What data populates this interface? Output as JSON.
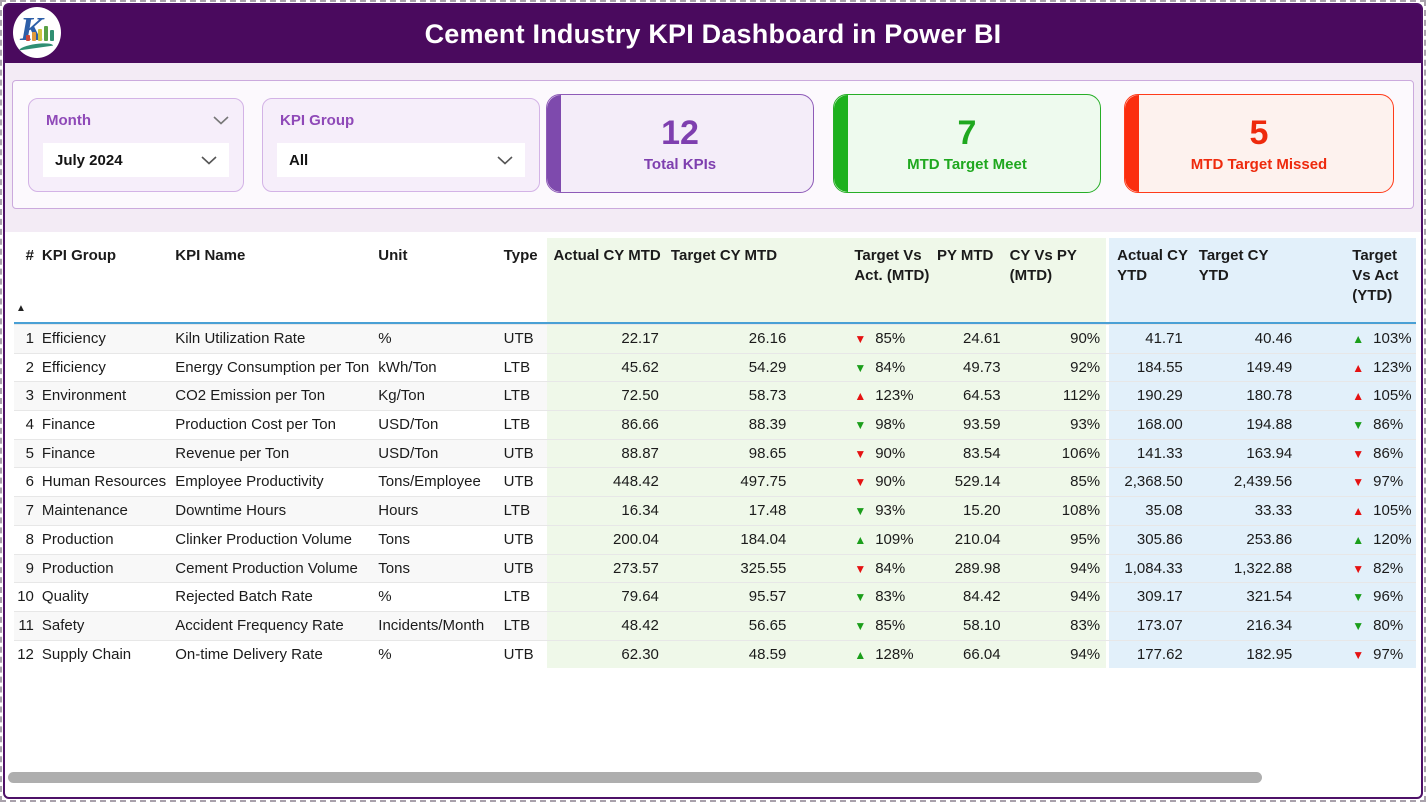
{
  "header": {
    "title": "Cement Industry KPI Dashboard in Power BI"
  },
  "filters": {
    "month": {
      "label": "Month",
      "value": "July 2024"
    },
    "kpi_group": {
      "label": "KPI Group",
      "value": "All"
    }
  },
  "cards": [
    {
      "value": "12",
      "label": "Total KPIs",
      "color": "#7e3faf",
      "bg": "#f4edf9",
      "accent": "#7e4aad"
    },
    {
      "value": "7",
      "label": "MTD Target Meet",
      "color": "#1fa81f",
      "bg": "#eefaee",
      "accent": "#1db11d"
    },
    {
      "value": "5",
      "label": "MTD Target Missed",
      "color": "#ee2a0d",
      "bg": "#fdf2ee",
      "accent": "#fb2e0f"
    }
  ],
  "colors": {
    "header_bar": "#4a0a5e",
    "mtd_section_bg": "#eff8e9",
    "ytd_section_bg": "#e2f0fa",
    "arrow_up_good": "#1b9e1b",
    "arrow_bad": "#e51212",
    "header_underline": "#49a0d5"
  },
  "table": {
    "columns": [
      "#",
      "KPI Group",
      "KPI Name",
      "Unit",
      "Type",
      "Actual CY MTD",
      "Target CY MTD",
      "Target Vs Act. (MTD)",
      "PY MTD",
      "CY Vs PY (MTD)",
      "Actual CY YTD",
      "Target CY YTD",
      "Target Vs Act (YTD)"
    ],
    "sort_indicator": "ascending-on-#",
    "rows": [
      {
        "num": "1",
        "group": "Efficiency",
        "name": "Kiln Utilization Rate",
        "unit": "%",
        "type": "UTB",
        "actual_mtd": "22.17",
        "target_mtd": "26.16",
        "tva_mtd": {
          "dir": "down",
          "color": "red",
          "value": "85%"
        },
        "py_mtd": "24.61",
        "cy_vs_py": "90%",
        "actual_ytd": "41.71",
        "target_ytd": "40.46",
        "tva_ytd": {
          "dir": "up",
          "color": "green",
          "value": "103%"
        }
      },
      {
        "num": "2",
        "group": "Efficiency",
        "name": "Energy Consumption per Ton",
        "unit": "kWh/Ton",
        "type": "LTB",
        "actual_mtd": "45.62",
        "target_mtd": "54.29",
        "tva_mtd": {
          "dir": "down",
          "color": "green",
          "value": "84%"
        },
        "py_mtd": "49.73",
        "cy_vs_py": "92%",
        "actual_ytd": "184.55",
        "target_ytd": "149.49",
        "tva_ytd": {
          "dir": "up",
          "color": "red",
          "value": "123%"
        }
      },
      {
        "num": "3",
        "group": "Environment",
        "name": "CO2 Emission per Ton",
        "unit": "Kg/Ton",
        "type": "LTB",
        "actual_mtd": "72.50",
        "target_mtd": "58.73",
        "tva_mtd": {
          "dir": "up",
          "color": "red",
          "value": "123%"
        },
        "py_mtd": "64.53",
        "cy_vs_py": "112%",
        "actual_ytd": "190.29",
        "target_ytd": "180.78",
        "tva_ytd": {
          "dir": "up",
          "color": "red",
          "value": "105%"
        }
      },
      {
        "num": "4",
        "group": "Finance",
        "name": "Production Cost per Ton",
        "unit": "USD/Ton",
        "type": "LTB",
        "actual_mtd": "86.66",
        "target_mtd": "88.39",
        "tva_mtd": {
          "dir": "down",
          "color": "green",
          "value": "98%"
        },
        "py_mtd": "93.59",
        "cy_vs_py": "93%",
        "actual_ytd": "168.00",
        "target_ytd": "194.88",
        "tva_ytd": {
          "dir": "down",
          "color": "green",
          "value": "86%"
        }
      },
      {
        "num": "5",
        "group": "Finance",
        "name": "Revenue per Ton",
        "unit": "USD/Ton",
        "type": "UTB",
        "actual_mtd": "88.87",
        "target_mtd": "98.65",
        "tva_mtd": {
          "dir": "down",
          "color": "red",
          "value": "90%"
        },
        "py_mtd": "83.54",
        "cy_vs_py": "106%",
        "actual_ytd": "141.33",
        "target_ytd": "163.94",
        "tva_ytd": {
          "dir": "down",
          "color": "red",
          "value": "86%"
        }
      },
      {
        "num": "6",
        "group": "Human Resources",
        "name": "Employee Productivity",
        "unit": "Tons/Employee",
        "type": "UTB",
        "actual_mtd": "448.42",
        "target_mtd": "497.75",
        "tva_mtd": {
          "dir": "down",
          "color": "red",
          "value": "90%"
        },
        "py_mtd": "529.14",
        "cy_vs_py": "85%",
        "actual_ytd": "2,368.50",
        "target_ytd": "2,439.56",
        "tva_ytd": {
          "dir": "down",
          "color": "red",
          "value": "97%"
        }
      },
      {
        "num": "7",
        "group": "Maintenance",
        "name": "Downtime Hours",
        "unit": "Hours",
        "type": "LTB",
        "actual_mtd": "16.34",
        "target_mtd": "17.48",
        "tva_mtd": {
          "dir": "down",
          "color": "green",
          "value": "93%"
        },
        "py_mtd": "15.20",
        "cy_vs_py": "108%",
        "actual_ytd": "35.08",
        "target_ytd": "33.33",
        "tva_ytd": {
          "dir": "up",
          "color": "red",
          "value": "105%"
        }
      },
      {
        "num": "8",
        "group": "Production",
        "name": "Clinker Production Volume",
        "unit": "Tons",
        "type": "UTB",
        "actual_mtd": "200.04",
        "target_mtd": "184.04",
        "tva_mtd": {
          "dir": "up",
          "color": "green",
          "value": "109%"
        },
        "py_mtd": "210.04",
        "cy_vs_py": "95%",
        "actual_ytd": "305.86",
        "target_ytd": "253.86",
        "tva_ytd": {
          "dir": "up",
          "color": "green",
          "value": "120%"
        }
      },
      {
        "num": "9",
        "group": "Production",
        "name": "Cement Production Volume",
        "unit": "Tons",
        "type": "UTB",
        "actual_mtd": "273.57",
        "target_mtd": "325.55",
        "tva_mtd": {
          "dir": "down",
          "color": "red",
          "value": "84%"
        },
        "py_mtd": "289.98",
        "cy_vs_py": "94%",
        "actual_ytd": "1,084.33",
        "target_ytd": "1,322.88",
        "tva_ytd": {
          "dir": "down",
          "color": "red",
          "value": "82%"
        }
      },
      {
        "num": "10",
        "group": "Quality",
        "name": "Rejected Batch Rate",
        "unit": "%",
        "type": "LTB",
        "actual_mtd": "79.64",
        "target_mtd": "95.57",
        "tva_mtd": {
          "dir": "down",
          "color": "green",
          "value": "83%"
        },
        "py_mtd": "84.42",
        "cy_vs_py": "94%",
        "actual_ytd": "309.17",
        "target_ytd": "321.54",
        "tva_ytd": {
          "dir": "down",
          "color": "green",
          "value": "96%"
        }
      },
      {
        "num": "11",
        "group": "Safety",
        "name": "Accident Frequency Rate",
        "unit": "Incidents/Month",
        "type": "LTB",
        "actual_mtd": "48.42",
        "target_mtd": "56.65",
        "tva_mtd": {
          "dir": "down",
          "color": "green",
          "value": "85%"
        },
        "py_mtd": "58.10",
        "cy_vs_py": "83%",
        "actual_ytd": "173.07",
        "target_ytd": "216.34",
        "tva_ytd": {
          "dir": "down",
          "color": "green",
          "value": "80%"
        }
      },
      {
        "num": "12",
        "group": "Supply Chain",
        "name": "On-time Delivery Rate",
        "unit": "%",
        "type": "UTB",
        "actual_mtd": "62.30",
        "target_mtd": "48.59",
        "tva_mtd": {
          "dir": "up",
          "color": "green",
          "value": "128%"
        },
        "py_mtd": "66.04",
        "cy_vs_py": "94%",
        "actual_ytd": "177.62",
        "target_ytd": "182.95",
        "tva_ytd": {
          "dir": "down",
          "color": "red",
          "value": "97%"
        }
      }
    ]
  }
}
